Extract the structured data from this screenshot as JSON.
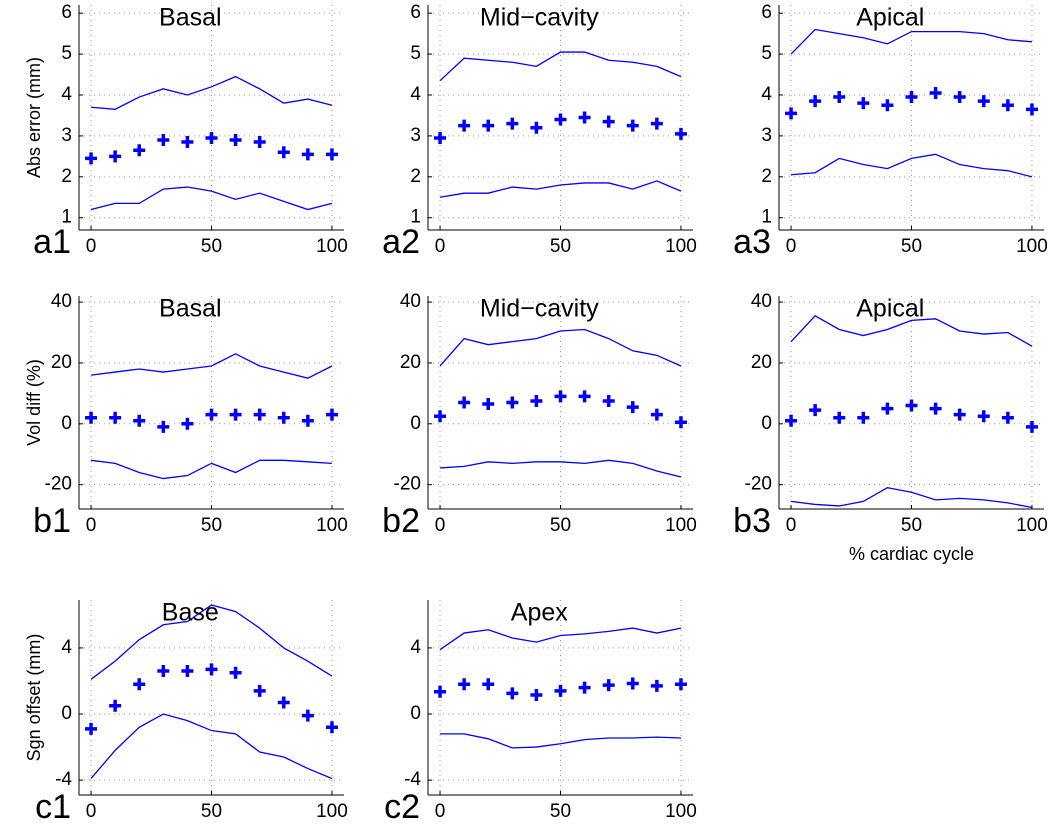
{
  "chart_data": [
    {
      "type": "line",
      "title": "Basal",
      "panel_label": "a1",
      "ylabel": "Abs error (mm)",
      "x": [
        0,
        10,
        20,
        30,
        40,
        50,
        60,
        70,
        80,
        90,
        100
      ],
      "series": [
        {
          "style": "marker",
          "color": "#0000ff",
          "values": [
            2.45,
            2.5,
            2.65,
            2.9,
            2.85,
            2.95,
            2.9,
            2.85,
            2.6,
            2.55,
            2.55
          ]
        },
        {
          "style": "line",
          "color": "#0000ff",
          "values": [
            3.7,
            3.65,
            3.95,
            4.15,
            4.0,
            4.2,
            4.45,
            4.15,
            3.8,
            3.9,
            3.75
          ]
        },
        {
          "style": "line",
          "color": "#0000ff",
          "values": [
            1.2,
            1.35,
            1.35,
            1.7,
            1.75,
            1.65,
            1.45,
            1.6,
            1.4,
            1.2,
            1.35
          ]
        }
      ],
      "xlim": [
        -5,
        105
      ],
      "ylim": [
        0.7,
        6.2
      ],
      "xticks": [
        0,
        50,
        100
      ],
      "yticks": [
        1,
        2,
        3,
        4,
        5,
        6
      ],
      "grid": true
    },
    {
      "type": "line",
      "title": "Mid−cavity",
      "panel_label": "a2",
      "x": [
        0,
        10,
        20,
        30,
        40,
        50,
        60,
        70,
        80,
        90,
        100
      ],
      "series": [
        {
          "style": "marker",
          "color": "#0000ff",
          "values": [
            2.95,
            3.25,
            3.25,
            3.3,
            3.2,
            3.4,
            3.45,
            3.35,
            3.25,
            3.3,
            3.05
          ]
        },
        {
          "style": "line",
          "color": "#0000ff",
          "values": [
            4.35,
            4.9,
            4.85,
            4.8,
            4.7,
            5.05,
            5.05,
            4.85,
            4.8,
            4.7,
            4.45
          ]
        },
        {
          "style": "line",
          "color": "#0000ff",
          "values": [
            1.5,
            1.6,
            1.6,
            1.75,
            1.7,
            1.8,
            1.85,
            1.85,
            1.7,
            1.9,
            1.65
          ]
        }
      ],
      "xlim": [
        -5,
        105
      ],
      "ylim": [
        0.7,
        6.2
      ],
      "xticks": [
        0,
        50,
        100
      ],
      "yticks": [
        1,
        2,
        3,
        4,
        5,
        6
      ],
      "grid": true
    },
    {
      "type": "line",
      "title": "Apical",
      "panel_label": "a3",
      "x": [
        0,
        10,
        20,
        30,
        40,
        50,
        60,
        70,
        80,
        90,
        100
      ],
      "series": [
        {
          "style": "marker",
          "color": "#0000ff",
          "values": [
            3.55,
            3.85,
            3.95,
            3.8,
            3.75,
            3.95,
            4.05,
            3.95,
            3.85,
            3.75,
            3.65
          ]
        },
        {
          "style": "line",
          "color": "#0000ff",
          "values": [
            5.0,
            5.6,
            5.5,
            5.4,
            5.25,
            5.55,
            5.55,
            5.55,
            5.5,
            5.35,
            5.3
          ]
        },
        {
          "style": "line",
          "color": "#0000ff",
          "values": [
            2.05,
            2.1,
            2.45,
            2.3,
            2.2,
            2.45,
            2.55,
            2.3,
            2.2,
            2.15,
            2.0
          ]
        }
      ],
      "xlim": [
        -5,
        105
      ],
      "ylim": [
        0.7,
        6.2
      ],
      "xticks": [
        0,
        50,
        100
      ],
      "yticks": [
        1,
        2,
        3,
        4,
        5,
        6
      ],
      "grid": true
    },
    {
      "type": "line",
      "title": "Basal",
      "panel_label": "b1",
      "ylabel": "Vol diff (%)",
      "x": [
        0,
        10,
        20,
        30,
        40,
        50,
        60,
        70,
        80,
        90,
        100
      ],
      "series": [
        {
          "style": "marker",
          "color": "#0000ff",
          "values": [
            2,
            2,
            1,
            -1,
            0,
            3,
            3,
            3,
            2,
            1,
            3
          ]
        },
        {
          "style": "line",
          "color": "#0000ff",
          "values": [
            16,
            17,
            18,
            17,
            18,
            19,
            23,
            19,
            17,
            15,
            19
          ]
        },
        {
          "style": "line",
          "color": "#0000ff",
          "values": [
            -12,
            -13,
            -16,
            -18,
            -17,
            -13,
            -16,
            -12,
            -12,
            -12.5,
            -13
          ]
        }
      ],
      "xlim": [
        -5,
        105
      ],
      "ylim": [
        -28,
        42
      ],
      "xticks": [
        0,
        50,
        100
      ],
      "yticks": [
        -20,
        0,
        20,
        40
      ],
      "grid": true
    },
    {
      "type": "line",
      "title": "Mid−cavity",
      "panel_label": "b2",
      "x": [
        0,
        10,
        20,
        30,
        40,
        50,
        60,
        70,
        80,
        90,
        100
      ],
      "series": [
        {
          "style": "marker",
          "color": "#0000ff",
          "values": [
            2.5,
            7,
            6.5,
            7,
            7.5,
            9,
            9,
            7.5,
            5.5,
            3,
            0.5
          ]
        },
        {
          "style": "line",
          "color": "#0000ff",
          "values": [
            19,
            28,
            26,
            27,
            28,
            30.5,
            31,
            28,
            24,
            22.5,
            19
          ]
        },
        {
          "style": "line",
          "color": "#0000ff",
          "values": [
            -14.5,
            -14,
            -12.5,
            -13,
            -12.5,
            -12.5,
            -13,
            -12,
            -13,
            -15.5,
            -17.5
          ]
        }
      ],
      "xlim": [
        -5,
        105
      ],
      "ylim": [
        -28,
        42
      ],
      "xticks": [
        0,
        50,
        100
      ],
      "yticks": [
        -20,
        0,
        20,
        40
      ],
      "grid": true
    },
    {
      "type": "line",
      "title": "Apical",
      "panel_label": "b3",
      "xlabel": "% cardiac cycle",
      "x": [
        0,
        10,
        20,
        30,
        40,
        50,
        60,
        70,
        80,
        90,
        100
      ],
      "series": [
        {
          "style": "marker",
          "color": "#0000ff",
          "values": [
            1,
            4.5,
            2,
            2,
            5,
            6,
            5,
            3,
            2.5,
            2,
            -1
          ]
        },
        {
          "style": "line",
          "color": "#0000ff",
          "values": [
            27,
            35.5,
            31,
            29,
            31,
            34,
            34.5,
            30.5,
            29.5,
            30,
            25.5
          ]
        },
        {
          "style": "line",
          "color": "#0000ff",
          "values": [
            -25.5,
            -26.5,
            -27,
            -25.5,
            -21,
            -22.5,
            -25,
            -24.5,
            -25,
            -26,
            -27.5
          ]
        }
      ],
      "xlim": [
        -5,
        105
      ],
      "ylim": [
        -28,
        42
      ],
      "xticks": [
        0,
        50,
        100
      ],
      "yticks": [
        -20,
        0,
        20,
        40
      ],
      "grid": true
    },
    {
      "type": "line",
      "title": "Base",
      "panel_label": "c1",
      "ylabel": "Sgn offset (mm)",
      "x": [
        0,
        10,
        20,
        30,
        40,
        50,
        60,
        70,
        80,
        90,
        100
      ],
      "series": [
        {
          "style": "marker",
          "color": "#0000ff",
          "values": [
            -0.9,
            0.5,
            1.8,
            2.6,
            2.6,
            2.7,
            2.5,
            1.4,
            0.7,
            -0.1,
            -0.8
          ]
        },
        {
          "style": "line",
          "color": "#0000ff",
          "values": [
            2.1,
            3.2,
            4.5,
            5.4,
            5.6,
            6.6,
            6.2,
            5.2,
            4.0,
            3.2,
            2.3
          ]
        },
        {
          "style": "line",
          "color": "#0000ff",
          "values": [
            -3.9,
            -2.2,
            -0.8,
            0,
            -0.4,
            -1.0,
            -1.2,
            -2.3,
            -2.6,
            -3.3,
            -3.9
          ]
        }
      ],
      "xlim": [
        -5,
        105
      ],
      "ylim": [
        -4.9,
        6.9
      ],
      "xticks": [
        0,
        50,
        100
      ],
      "yticks": [
        -4,
        0,
        4
      ],
      "grid": true
    },
    {
      "type": "line",
      "title": "Apex",
      "panel_label": "c2",
      "x": [
        0,
        10,
        20,
        30,
        40,
        50,
        60,
        70,
        80,
        90,
        100
      ],
      "series": [
        {
          "style": "marker",
          "color": "#0000ff",
          "values": [
            1.35,
            1.8,
            1.8,
            1.25,
            1.15,
            1.4,
            1.6,
            1.75,
            1.85,
            1.7,
            1.8
          ]
        },
        {
          "style": "line",
          "color": "#0000ff",
          "values": [
            3.9,
            4.9,
            5.1,
            4.6,
            4.35,
            4.75,
            4.85,
            5.0,
            5.2,
            4.9,
            5.2
          ]
        },
        {
          "style": "line",
          "color": "#0000ff",
          "values": [
            -1.2,
            -1.2,
            -1.5,
            -2.05,
            -2.0,
            -1.8,
            -1.55,
            -1.45,
            -1.45,
            -1.4,
            -1.45
          ]
        }
      ],
      "xlim": [
        -5,
        105
      ],
      "ylim": [
        -4.9,
        6.9
      ],
      "xticks": [
        0,
        50,
        100
      ],
      "yticks": [
        -4,
        0,
        4
      ],
      "grid": true
    }
  ]
}
